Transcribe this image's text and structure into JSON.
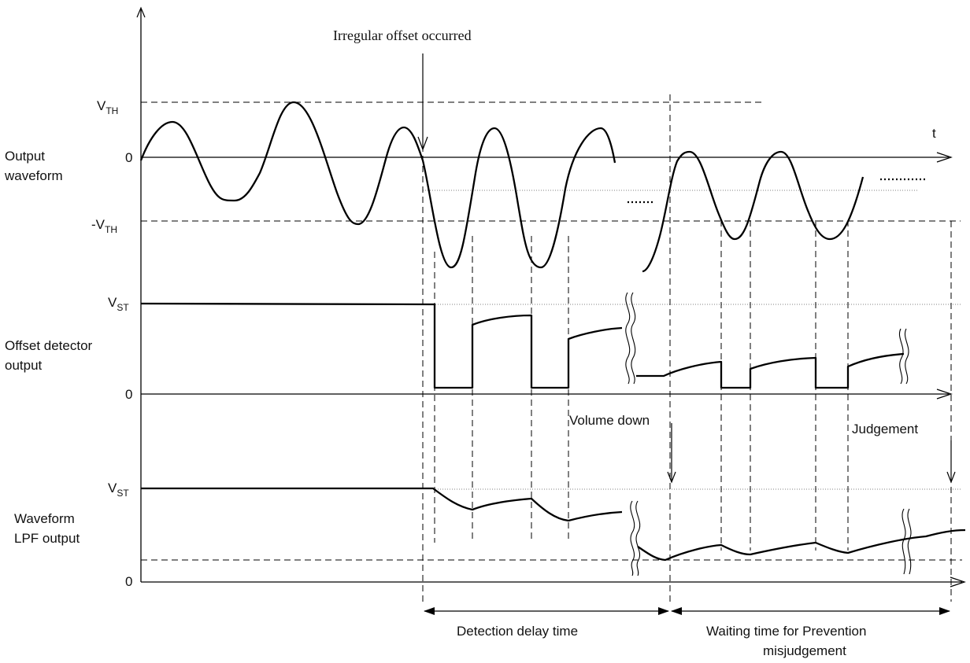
{
  "annotations": {
    "irregular_offset": "Irregular offset occurred",
    "volume_down": "Volume down",
    "judgement": "Judgement",
    "t_axis": "t"
  },
  "rows": {
    "output_waveform": {
      "line1": "Output",
      "line2": "waveform"
    },
    "offset_detector": {
      "line1": "Offset detector",
      "line2": "output"
    },
    "lpf": {
      "line1": "Waveform",
      "line2": "LPF output"
    }
  },
  "levels": {
    "vth_main": "V",
    "vth_sub": "TH",
    "neg_vth_main": "-V",
    "neg_vth_sub": "TH",
    "vst_main": "V",
    "vst_sub": "ST",
    "zero": "0"
  },
  "durations": {
    "detection_delay": "Detection delay time",
    "waiting_line1": "Waiting time for Prevention",
    "waiting_line2": "misjudgement"
  }
}
